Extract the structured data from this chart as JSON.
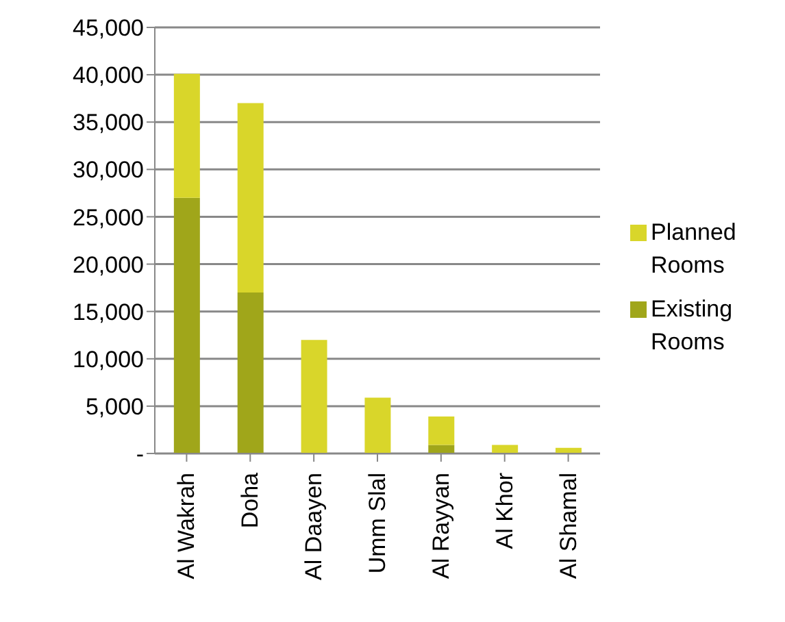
{
  "chart_data": {
    "type": "bar",
    "stacked": true,
    "categories": [
      "Al Wakrah",
      "Doha",
      "Al Daayen",
      "Umm Slal",
      "Al Rayyan",
      "Al Khor",
      "Al Shamal"
    ],
    "series": [
      {
        "name": "Existing Rooms",
        "color": "#a0a61a",
        "values": [
          27000,
          17000,
          0,
          0,
          900,
          0,
          0
        ]
      },
      {
        "name": "Planned Rooms",
        "color": "#d9d62a",
        "values": [
          13100,
          20000,
          12000,
          5900,
          3000,
          900,
          600
        ]
      }
    ],
    "ylim": [
      0,
      45000
    ],
    "yticks": [
      {
        "value": 0,
        "label": "-"
      },
      {
        "value": 5000,
        "label": "5,000"
      },
      {
        "value": 10000,
        "label": "10,000"
      },
      {
        "value": 15000,
        "label": "15,000"
      },
      {
        "value": 20000,
        "label": "20,000"
      },
      {
        "value": 25000,
        "label": "25,000"
      },
      {
        "value": 30000,
        "label": "30,000"
      },
      {
        "value": 35000,
        "label": "35,000"
      },
      {
        "value": 40000,
        "label": "40,000"
      },
      {
        "value": 45000,
        "label": "45,000"
      }
    ],
    "grid": "y",
    "legend": "right"
  }
}
